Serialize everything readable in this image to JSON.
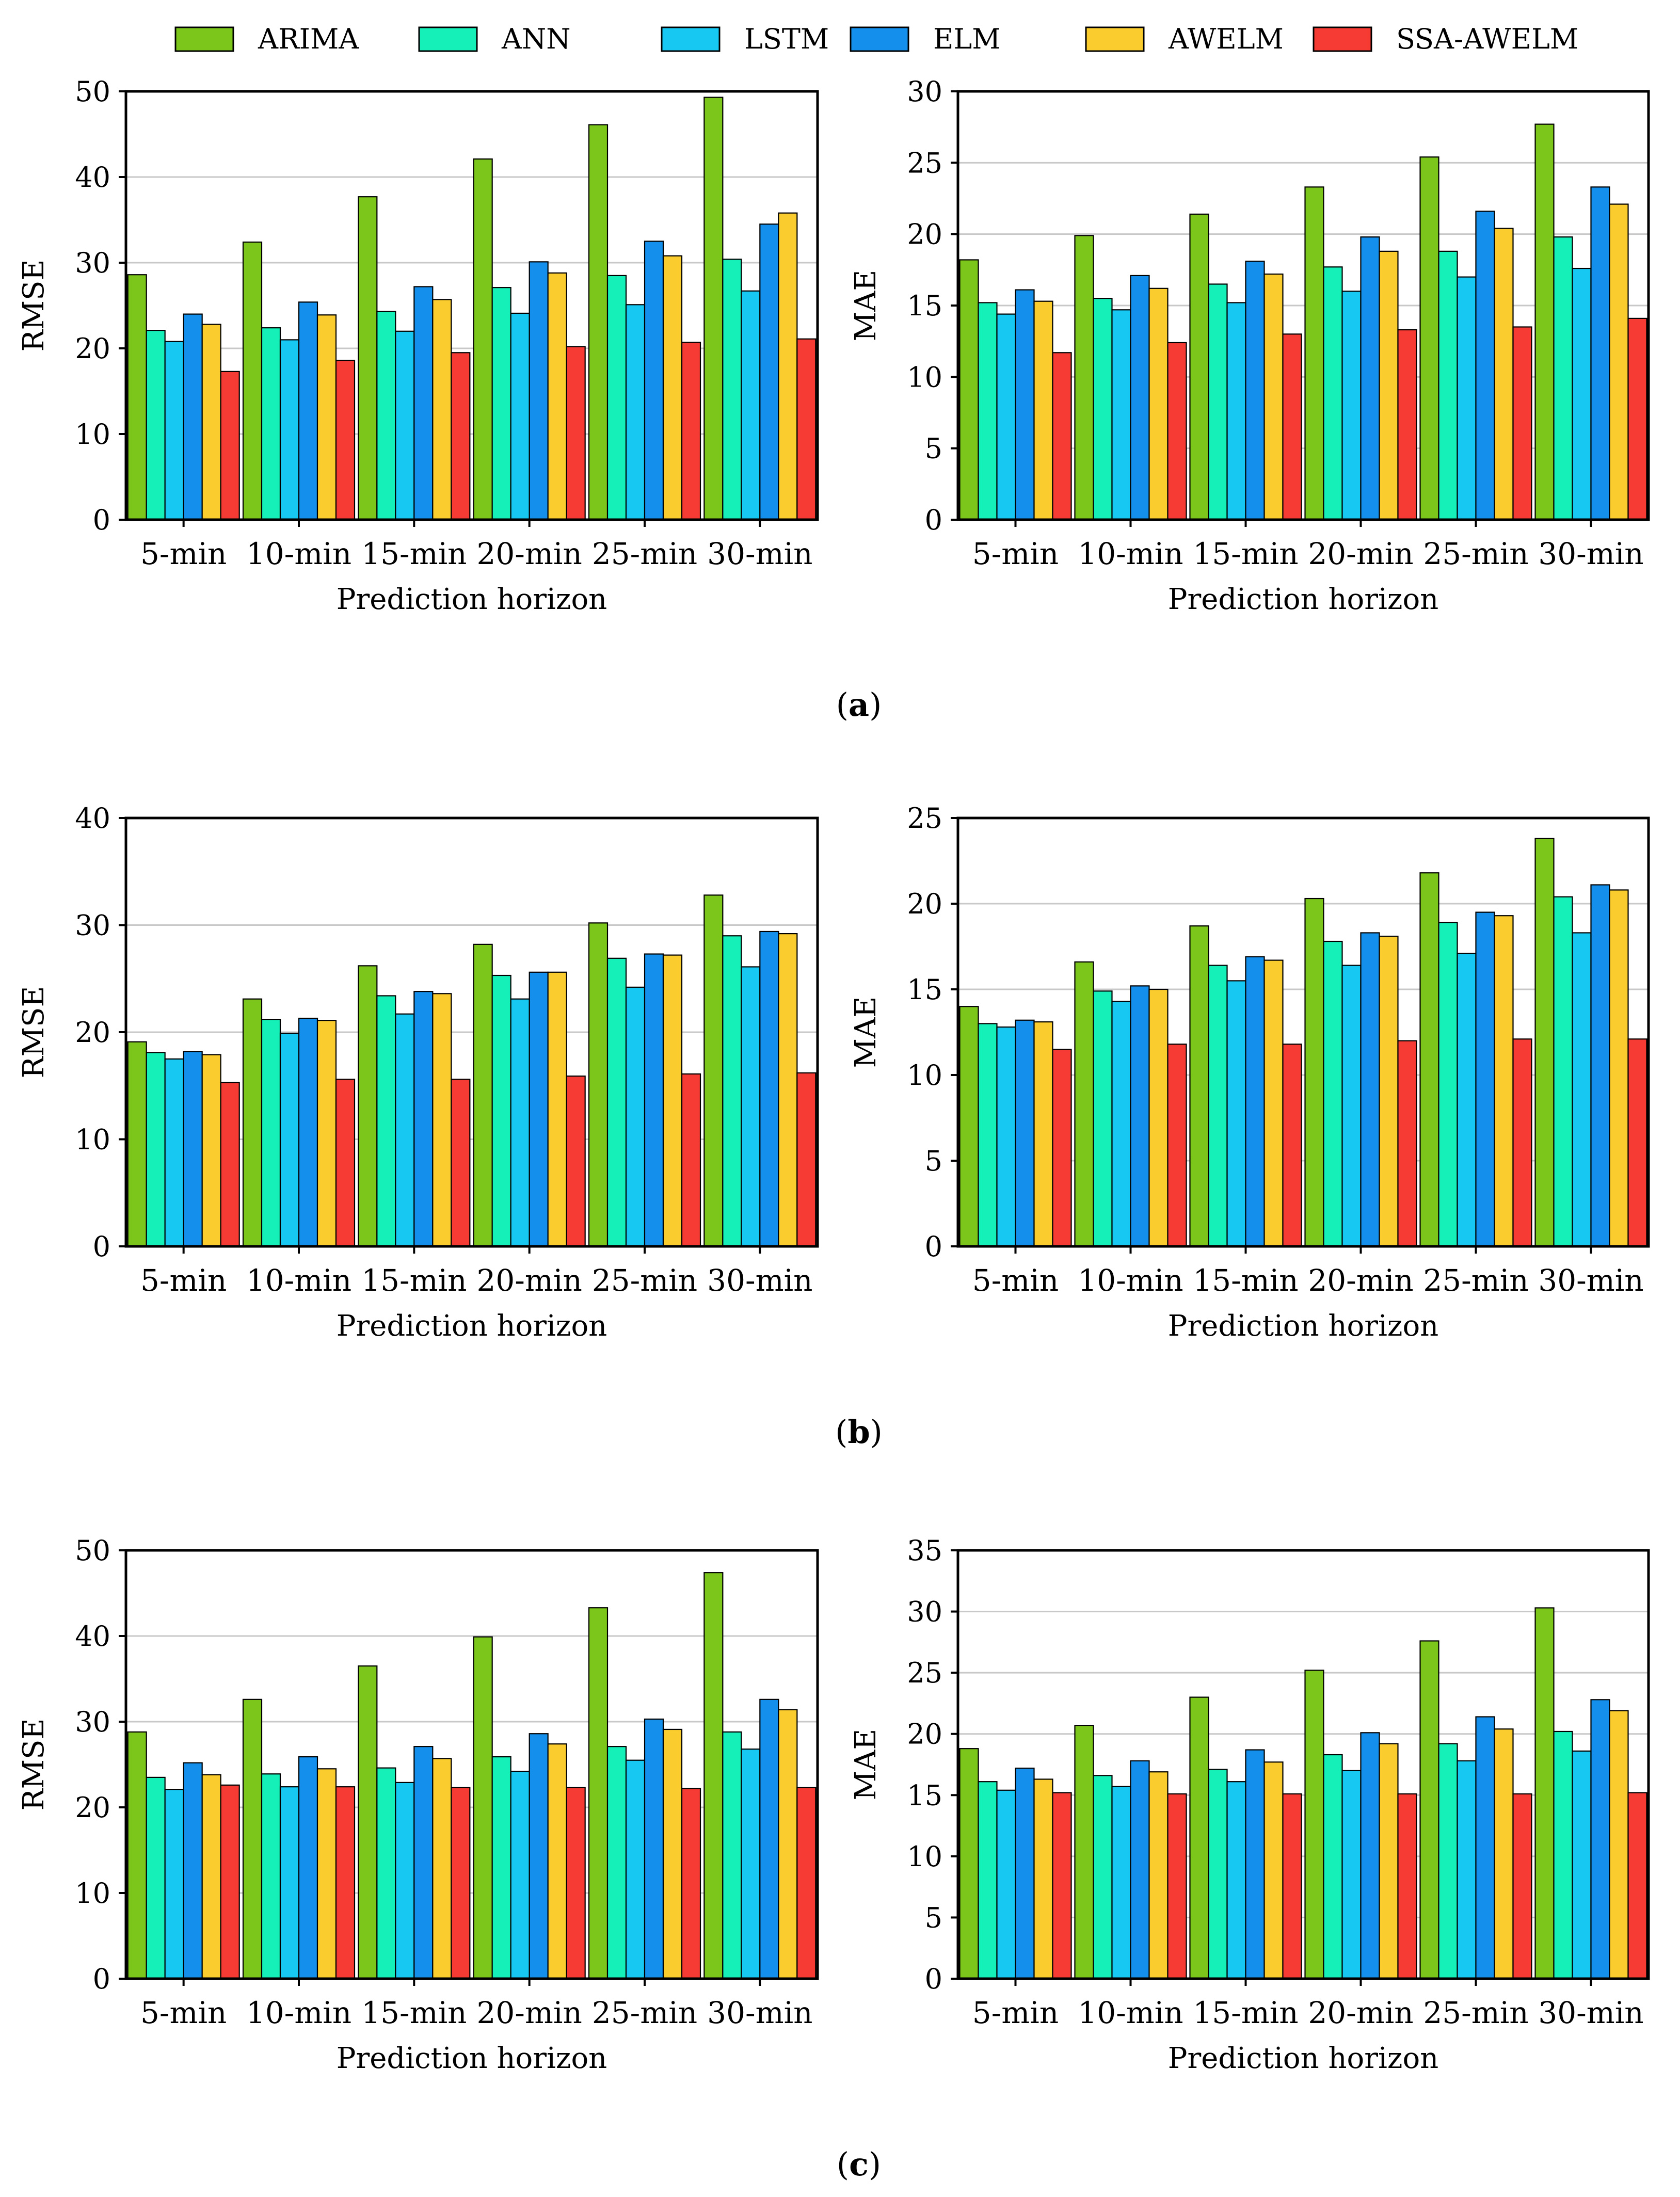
{
  "chart_data": [
    {
      "type": "bar",
      "panel": "(a)",
      "side": "left",
      "categories": [
        "5-min",
        "10-min",
        "15-min",
        "20-min",
        "25-min",
        "30-min"
      ],
      "xlabel": "Prediction horizon",
      "ylabel": "RMSE",
      "ylim": [
        0,
        50
      ],
      "yticks": [
        0,
        10,
        20,
        30,
        40,
        50
      ],
      "grid": true,
      "series": [
        {
          "name": "ARIMA",
          "values": [
            28.6,
            32.4,
            37.7,
            42.1,
            46.1,
            49.3
          ]
        },
        {
          "name": "ANN",
          "values": [
            22.1,
            22.4,
            24.3,
            27.1,
            28.5,
            30.4
          ]
        },
        {
          "name": "LSTM",
          "values": [
            20.8,
            21.0,
            22.0,
            24.1,
            25.1,
            26.7
          ]
        },
        {
          "name": "ELM",
          "values": [
            24.0,
            25.4,
            27.2,
            30.1,
            32.5,
            34.5
          ]
        },
        {
          "name": "AWELM",
          "values": [
            22.8,
            23.9,
            25.7,
            28.8,
            30.8,
            35.8
          ]
        },
        {
          "name": "SSA-AWELM",
          "values": [
            17.3,
            18.6,
            19.5,
            20.2,
            20.7,
            21.1
          ]
        }
      ]
    },
    {
      "type": "bar",
      "panel": "(a)",
      "side": "right",
      "categories": [
        "5-min",
        "10-min",
        "15-min",
        "20-min",
        "25-min",
        "30-min"
      ],
      "xlabel": "Prediction horizon",
      "ylabel": "MAE",
      "ylim": [
        0,
        30
      ],
      "yticks": [
        0,
        5,
        10,
        15,
        20,
        25,
        30
      ],
      "grid": true,
      "series": [
        {
          "name": "ARIMA",
          "values": [
            18.2,
            19.9,
            21.4,
            23.3,
            25.4,
            27.7
          ]
        },
        {
          "name": "ANN",
          "values": [
            15.2,
            15.5,
            16.5,
            17.7,
            18.8,
            19.8
          ]
        },
        {
          "name": "LSTM",
          "values": [
            14.4,
            14.7,
            15.2,
            16.0,
            17.0,
            17.6
          ]
        },
        {
          "name": "ELM",
          "values": [
            16.1,
            17.1,
            18.1,
            19.8,
            21.6,
            23.3
          ]
        },
        {
          "name": "AWELM",
          "values": [
            15.3,
            16.2,
            17.2,
            18.8,
            20.4,
            22.1
          ]
        },
        {
          "name": "SSA-AWELM",
          "values": [
            11.7,
            12.4,
            13.0,
            13.3,
            13.5,
            14.1
          ]
        }
      ]
    },
    {
      "type": "bar",
      "panel": "(b)",
      "side": "left",
      "categories": [
        "5-min",
        "10-min",
        "15-min",
        "20-min",
        "25-min",
        "30-min"
      ],
      "xlabel": "Prediction horizon",
      "ylabel": "RMSE",
      "ylim": [
        0,
        40
      ],
      "yticks": [
        0,
        10,
        20,
        30,
        40
      ],
      "grid": true,
      "series": [
        {
          "name": "ARIMA",
          "values": [
            19.1,
            23.1,
            26.2,
            28.2,
            30.2,
            32.8
          ]
        },
        {
          "name": "ANN",
          "values": [
            18.1,
            21.2,
            23.4,
            25.3,
            26.9,
            29.0
          ]
        },
        {
          "name": "LSTM",
          "values": [
            17.5,
            19.9,
            21.7,
            23.1,
            24.2,
            26.1
          ]
        },
        {
          "name": "ELM",
          "values": [
            18.2,
            21.3,
            23.8,
            25.6,
            27.3,
            29.4
          ]
        },
        {
          "name": "AWELM",
          "values": [
            17.9,
            21.1,
            23.6,
            25.6,
            27.2,
            29.2
          ]
        },
        {
          "name": "SSA-AWELM",
          "values": [
            15.3,
            15.6,
            15.6,
            15.9,
            16.1,
            16.2
          ]
        }
      ]
    },
    {
      "type": "bar",
      "panel": "(b)",
      "side": "right",
      "categories": [
        "5-min",
        "10-min",
        "15-min",
        "20-min",
        "25-min",
        "30-min"
      ],
      "xlabel": "Prediction horizon",
      "ylabel": "MAE",
      "ylim": [
        0,
        25
      ],
      "yticks": [
        0,
        5,
        10,
        15,
        20,
        25
      ],
      "grid": true,
      "series": [
        {
          "name": "ARIMA",
          "values": [
            14.0,
            16.6,
            18.7,
            20.3,
            21.8,
            23.8
          ]
        },
        {
          "name": "ANN",
          "values": [
            13.0,
            14.9,
            16.4,
            17.8,
            18.9,
            20.4
          ]
        },
        {
          "name": "LSTM",
          "values": [
            12.8,
            14.3,
            15.5,
            16.4,
            17.1,
            18.3
          ]
        },
        {
          "name": "ELM",
          "values": [
            13.2,
            15.2,
            16.9,
            18.3,
            19.5,
            21.1
          ]
        },
        {
          "name": "AWELM",
          "values": [
            13.1,
            15.0,
            16.7,
            18.1,
            19.3,
            20.8
          ]
        },
        {
          "name": "SSA-AWELM",
          "values": [
            11.5,
            11.8,
            11.8,
            12.0,
            12.1,
            12.1
          ]
        }
      ]
    },
    {
      "type": "bar",
      "panel": "(c)",
      "side": "left",
      "categories": [
        "5-min",
        "10-min",
        "15-min",
        "20-min",
        "25-min",
        "30-min"
      ],
      "xlabel": "Prediction horizon",
      "ylabel": "RMSE",
      "ylim": [
        0,
        50
      ],
      "yticks": [
        0,
        10,
        20,
        30,
        40,
        50
      ],
      "grid": true,
      "series": [
        {
          "name": "ARIMA",
          "values": [
            28.8,
            32.6,
            36.5,
            39.9,
            43.3,
            47.4
          ]
        },
        {
          "name": "ANN",
          "values": [
            23.5,
            23.9,
            24.6,
            25.9,
            27.1,
            28.8
          ]
        },
        {
          "name": "LSTM",
          "values": [
            22.1,
            22.4,
            22.9,
            24.2,
            25.5,
            26.8
          ]
        },
        {
          "name": "ELM",
          "values": [
            25.2,
            25.9,
            27.1,
            28.6,
            30.3,
            32.6
          ]
        },
        {
          "name": "AWELM",
          "values": [
            23.8,
            24.5,
            25.7,
            27.4,
            29.1,
            31.4
          ]
        },
        {
          "name": "SSA-AWELM",
          "values": [
            22.6,
            22.4,
            22.3,
            22.3,
            22.2,
            22.3
          ]
        }
      ]
    },
    {
      "type": "bar",
      "panel": "(c)",
      "side": "right",
      "categories": [
        "5-min",
        "10-min",
        "15-min",
        "20-min",
        "25-min",
        "30-min"
      ],
      "xlabel": "Prediction horizon",
      "ylabel": "MAE",
      "ylim": [
        0,
        35
      ],
      "yticks": [
        0,
        5,
        10,
        15,
        20,
        25,
        30,
        35
      ],
      "grid": true,
      "series": [
        {
          "name": "ARIMA",
          "values": [
            18.8,
            20.7,
            23.0,
            25.2,
            27.6,
            30.3
          ]
        },
        {
          "name": "ANN",
          "values": [
            16.1,
            16.6,
            17.1,
            18.3,
            19.2,
            20.2
          ]
        },
        {
          "name": "LSTM",
          "values": [
            15.4,
            15.7,
            16.1,
            17.0,
            17.8,
            18.6
          ]
        },
        {
          "name": "ELM",
          "values": [
            17.2,
            17.8,
            18.7,
            20.1,
            21.4,
            22.8
          ]
        },
        {
          "name": "AWELM",
          "values": [
            16.3,
            16.9,
            17.7,
            19.2,
            20.4,
            21.9
          ]
        },
        {
          "name": "SSA-AWELM",
          "values": [
            15.2,
            15.1,
            15.1,
            15.1,
            15.1,
            15.2
          ]
        }
      ]
    }
  ],
  "legend": {
    "placement": "top",
    "items": [
      {
        "name": "ARIMA",
        "color": "#7cc61b"
      },
      {
        "name": "ANN",
        "color": "#14f0b8"
      },
      {
        "name": "LSTM",
        "color": "#16c8f2"
      },
      {
        "name": "ELM",
        "color": "#1490ec"
      },
      {
        "name": "AWELM",
        "color": "#fbcc2e"
      },
      {
        "name": "SSA-AWELM",
        "color": "#f53b34"
      }
    ]
  },
  "captions": [
    {
      "open": "(",
      "letter": "a",
      "close": ")"
    },
    {
      "open": "(",
      "letter": "b",
      "close": ")"
    },
    {
      "open": "(",
      "letter": "c",
      "close": ")"
    }
  ]
}
